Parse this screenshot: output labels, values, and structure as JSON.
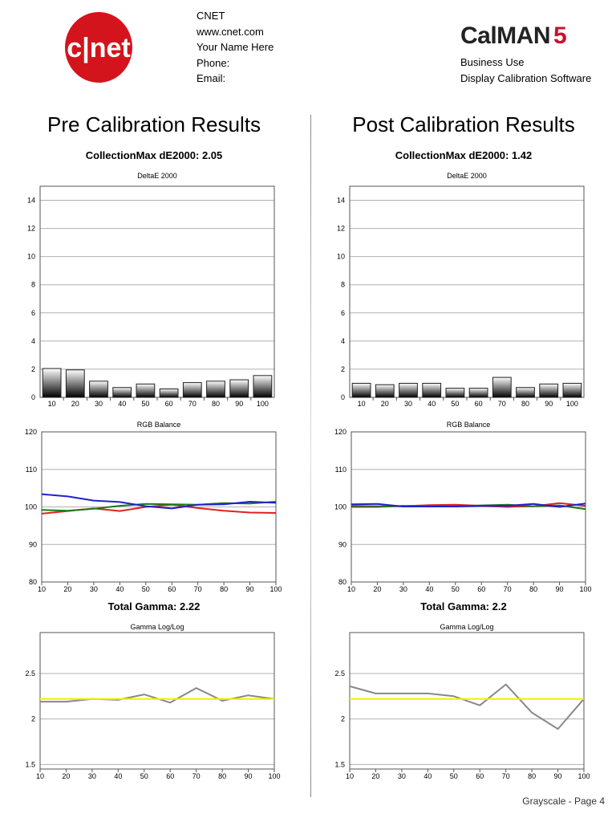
{
  "header": {
    "brand_logo_text": "c|net",
    "contact_lines": [
      "CNET",
      "www.cnet.com",
      "Your Name Here",
      "Phone:",
      "Email:"
    ],
    "software_logo_text": "CalMAN",
    "software_logo_version": "5",
    "software_lines": [
      "Business Use",
      "Display Calibration Software"
    ]
  },
  "pre": {
    "title": "Pre Calibration Results",
    "collection_max": "CollectionMax dE2000: 2.05",
    "total_gamma": "Total Gamma: 2.22"
  },
  "post": {
    "title": "Post Calibration Results",
    "collection_max": "CollectionMax dE2000: 1.42",
    "total_gamma": "Total Gamma: 2.2"
  },
  "footer": {
    "page_label": "Grayscale - Page 4"
  },
  "colors": {
    "red": "#e02020",
    "green": "#1a7a1a",
    "blue": "#2020d0",
    "gamma_line": "#888888",
    "gamma_target": "#f0f000",
    "brand_red": "#d4141c"
  },
  "chart_data": [
    {
      "id": "pre-deltae",
      "type": "bar",
      "title": "DeltaE 2000",
      "categories": [
        "10",
        "20",
        "30",
        "40",
        "50",
        "60",
        "70",
        "80",
        "90",
        "100"
      ],
      "values": [
        2.05,
        1.95,
        1.15,
        0.7,
        0.95,
        0.6,
        1.05,
        1.15,
        1.25,
        1.55
      ],
      "ylim": [
        0,
        15
      ],
      "yticks": [
        0,
        2,
        4,
        6,
        8,
        10,
        12,
        14
      ]
    },
    {
      "id": "post-deltae",
      "type": "bar",
      "title": "DeltaE 2000",
      "categories": [
        "10",
        "20",
        "30",
        "40",
        "50",
        "60",
        "70",
        "80",
        "90",
        "100"
      ],
      "values": [
        1.0,
        0.9,
        1.0,
        1.0,
        0.65,
        0.65,
        1.42,
        0.7,
        0.95,
        1.0
      ],
      "ylim": [
        0,
        15
      ],
      "yticks": [
        0,
        2,
        4,
        6,
        8,
        10,
        12,
        14
      ]
    },
    {
      "id": "pre-rgb",
      "type": "line",
      "title": "RGB Balance",
      "x": [
        10,
        20,
        30,
        40,
        50,
        60,
        70,
        80,
        90,
        100
      ],
      "series": [
        {
          "color": "#e02020",
          "values": [
            98.2,
            98.9,
            99.6,
            98.9,
            100.0,
            100.6,
            99.7,
            99.0,
            98.5,
            98.4
          ]
        },
        {
          "color": "#1a7a1a",
          "values": [
            99.2,
            99.0,
            99.5,
            100.3,
            100.8,
            100.7,
            100.6,
            101.0,
            100.9,
            101.4
          ]
        },
        {
          "color": "#2020d0",
          "values": [
            103.4,
            102.8,
            101.7,
            101.3,
            100.2,
            99.6,
            100.6,
            100.7,
            101.4,
            101.1
          ]
        }
      ],
      "xlim": [
        10,
        100
      ],
      "ylim": [
        80,
        120
      ],
      "yticks": [
        80,
        90,
        100,
        110,
        120
      ],
      "xticks": [
        10,
        20,
        30,
        40,
        50,
        60,
        70,
        80,
        90,
        100
      ]
    },
    {
      "id": "post-rgb",
      "type": "line",
      "title": "RGB Balance",
      "x": [
        10,
        20,
        30,
        40,
        50,
        60,
        70,
        80,
        90,
        100
      ],
      "series": [
        {
          "color": "#e02020",
          "values": [
            100.3,
            100.2,
            100.2,
            100.5,
            100.6,
            100.3,
            100.0,
            100.2,
            101.0,
            100.3
          ]
        },
        {
          "color": "#1a7a1a",
          "values": [
            100.0,
            100.0,
            100.3,
            100.2,
            100.2,
            100.4,
            100.6,
            100.2,
            100.4,
            99.4
          ]
        },
        {
          "color": "#2020d0",
          "values": [
            100.7,
            100.8,
            100.1,
            100.1,
            100.1,
            100.3,
            100.3,
            100.8,
            100.0,
            100.9
          ]
        }
      ],
      "xlim": [
        10,
        100
      ],
      "ylim": [
        80,
        120
      ],
      "yticks": [
        80,
        90,
        100,
        110,
        120
      ],
      "xticks": [
        10,
        20,
        30,
        40,
        50,
        60,
        70,
        80,
        90,
        100
      ]
    },
    {
      "id": "pre-gamma",
      "type": "line",
      "title": "Gamma Log/Log",
      "x": [
        10,
        20,
        30,
        40,
        50,
        60,
        70,
        80,
        90,
        100
      ],
      "series": [
        {
          "color": "#888888",
          "values": [
            2.19,
            2.19,
            2.22,
            2.21,
            2.27,
            2.18,
            2.34,
            2.2,
            2.26,
            2.22
          ]
        },
        {
          "color": "#f0f000",
          "values": [
            2.22,
            2.22,
            2.22,
            2.22,
            2.22,
            2.22,
            2.22,
            2.22,
            2.22,
            2.22
          ]
        }
      ],
      "xlim": [
        10,
        100
      ],
      "ylim": [
        1.45,
        2.95
      ],
      "yticks": [
        1.5,
        2,
        2.5
      ],
      "ytick_labels": [
        "1.5",
        "2",
        "2.5"
      ],
      "xticks": [
        10,
        20,
        30,
        40,
        50,
        60,
        70,
        80,
        90,
        100
      ]
    },
    {
      "id": "post-gamma",
      "type": "line",
      "title": "Gamma Log/Log",
      "x": [
        10,
        20,
        30,
        40,
        50,
        60,
        70,
        80,
        90,
        100
      ],
      "series": [
        {
          "color": "#888888",
          "values": [
            2.36,
            2.28,
            2.28,
            2.28,
            2.25,
            2.15,
            2.38,
            2.07,
            1.89,
            2.22
          ]
        },
        {
          "color": "#f0f000",
          "values": [
            2.22,
            2.22,
            2.22,
            2.22,
            2.22,
            2.22,
            2.22,
            2.22,
            2.22,
            2.22
          ]
        }
      ],
      "xlim": [
        10,
        100
      ],
      "ylim": [
        1.45,
        2.95
      ],
      "yticks": [
        1.5,
        2,
        2.5
      ],
      "ytick_labels": [
        "1.5",
        "2",
        "2.5"
      ],
      "xticks": [
        10,
        20,
        30,
        40,
        50,
        60,
        70,
        80,
        90,
        100
      ]
    }
  ]
}
